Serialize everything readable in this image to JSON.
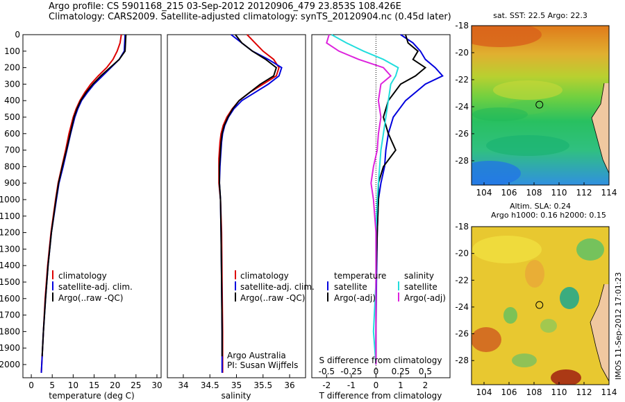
{
  "header": {
    "line1": "Argo profile: CS 5901168_215 03-Sep-2012 20120906_479 23.853S 108.426E",
    "line2": "Climatology: CARS2009. Satellite-adjusted climatology: synTS_20120904.nc (0.45d later)"
  },
  "stamp": "IMOS 11-Sep-2012 17:01:23",
  "colors": {
    "climatology": "#dd0000",
    "satellite": "#0000dd",
    "argo": "#000000",
    "cyan": "#22dddd",
    "magenta": "#dd22dd"
  },
  "chart_data": [
    {
      "id": "temperature",
      "type": "line",
      "xlabel": "temperature (deg C)",
      "xlim": [
        -2,
        31
      ],
      "ylim": [
        2080,
        0
      ],
      "xticks": [
        0,
        5,
        10,
        15,
        20,
        25,
        30
      ],
      "yticks": [
        0,
        100,
        200,
        300,
        400,
        500,
        600,
        700,
        800,
        900,
        1000,
        1100,
        1200,
        1300,
        1400,
        1500,
        1600,
        1700,
        1800,
        1900,
        2000
      ],
      "legend": {
        "placement": "lower-center",
        "labels": [
          "climatology",
          "satellite-adj. clim.",
          "Argo(..raw -QC)"
        ]
      },
      "series": [
        {
          "key": "climatology",
          "depth": [
            0,
            50,
            100,
            150,
            200,
            250,
            300,
            350,
            400,
            450,
            500,
            600,
            700,
            800,
            900,
            1000,
            1200,
            1400,
            1600,
            1800,
            2000,
            2050
          ],
          "values": [
            21.5,
            21.2,
            20.5,
            19.5,
            18,
            16,
            14.2,
            12.8,
            11.6,
            10.7,
            10,
            9,
            8.2,
            7.3,
            6.4,
            5.8,
            4.7,
            3.9,
            3.3,
            2.9,
            2.5,
            2.4
          ]
        },
        {
          "key": "satellite",
          "depth": [
            0,
            50,
            100,
            150,
            200,
            250,
            300,
            350,
            400,
            450,
            500,
            600,
            700,
            800,
            900,
            1000,
            1200,
            1400,
            1600,
            1800,
            2000,
            2050
          ],
          "values": [
            22.4,
            22.3,
            22.2,
            21,
            19,
            17,
            15,
            13.4,
            12,
            11.1,
            10.4,
            9.4,
            8.5,
            7.6,
            6.6,
            6,
            4.8,
            4,
            3.4,
            2.9,
            2.5,
            2.4
          ]
        },
        {
          "key": "argo",
          "depth": [
            0,
            50,
            100,
            150,
            200,
            250,
            300,
            350,
            400,
            450,
            500,
            600,
            700,
            800,
            900,
            1000,
            1200,
            1400,
            1600,
            1800,
            1950
          ],
          "values": [
            22.6,
            22.5,
            22.4,
            21,
            18.8,
            16.6,
            14.7,
            13.1,
            11.8,
            10.9,
            10.2,
            9.3,
            8.4,
            7.4,
            6.5,
            5.9,
            4.8,
            4,
            3.4,
            2.9,
            2.6
          ]
        }
      ]
    },
    {
      "id": "salinity",
      "type": "line",
      "xlabel": "salinity",
      "xlim": [
        33.7,
        36.3
      ],
      "ylim": [
        2080,
        0
      ],
      "xticks": [
        34,
        34.5,
        35,
        35.5,
        36
      ],
      "legend": {
        "placement": "lower-right",
        "labels": [
          "climatology",
          "satellite-adj. clim.",
          "Argo(..raw -QC)"
        ]
      },
      "annotations": [
        "Argo Australia",
        "PI: Susan Wijffels"
      ],
      "series": [
        {
          "key": "climatology",
          "depth": [
            0,
            50,
            100,
            150,
            200,
            250,
            300,
            350,
            400,
            450,
            500,
            550,
            600,
            650,
            700,
            750,
            800,
            900,
            1000,
            1200,
            1500,
            1800,
            2050
          ],
          "values": [
            35.2,
            35.35,
            35.5,
            35.7,
            35.8,
            35.75,
            35.5,
            35.25,
            35.05,
            34.92,
            34.82,
            34.75,
            34.71,
            34.69,
            34.68,
            34.67,
            34.67,
            34.67,
            34.7,
            34.72,
            34.73,
            34.74,
            34.74
          ]
        },
        {
          "key": "satellite",
          "depth": [
            0,
            50,
            100,
            150,
            200,
            250,
            300,
            350,
            400,
            450,
            500,
            550,
            600,
            650,
            700,
            750,
            800,
            900,
            1000,
            1200,
            1500,
            1800,
            2050
          ],
          "values": [
            34.9,
            35.1,
            35.3,
            35.6,
            35.85,
            35.8,
            35.6,
            35.35,
            35.1,
            34.95,
            34.85,
            34.78,
            34.74,
            34.72,
            34.71,
            34.7,
            34.69,
            34.68,
            34.7,
            34.71,
            34.72,
            34.73,
            34.73
          ]
        },
        {
          "key": "argo",
          "depth": [
            0,
            50,
            100,
            150,
            200,
            250,
            300,
            350,
            400,
            450,
            500,
            550,
            600,
            650,
            700,
            750,
            800,
            900,
            1000,
            1200,
            1500,
            1800,
            1950
          ],
          "values": [
            34.98,
            35.1,
            35.3,
            35.55,
            35.75,
            35.7,
            35.45,
            35.25,
            35.05,
            34.93,
            34.84,
            34.77,
            34.73,
            34.71,
            34.7,
            34.69,
            34.68,
            34.68,
            34.7,
            34.71,
            34.72,
            34.73,
            34.73
          ]
        }
      ]
    },
    {
      "id": "difference",
      "type": "line",
      "xlabel": "T difference from climatology",
      "x2label": "S difference from climatology",
      "xlim": [
        -2.6,
        3.0
      ],
      "ylim": [
        2080,
        0
      ],
      "xticks": [
        -2,
        -1,
        0,
        1,
        2
      ],
      "x2ticks": [
        -0.5,
        -0.25,
        0,
        0.25,
        0.5
      ],
      "legend": {
        "placement": "lower-center",
        "title_left": "temperature",
        "title_right": "salinity",
        "labels": [
          "satellite",
          "Argo(-adj)",
          "satellite",
          "Argo(-adj)"
        ]
      },
      "series": [
        {
          "key": "t_satellite",
          "depth": [
            0,
            50,
            100,
            150,
            200,
            250,
            300,
            400,
            500,
            600,
            700,
            800,
            900,
            1000,
            1200,
            1500,
            1800,
            2000
          ],
          "values": [
            1.0,
            1.5,
            1.8,
            2.0,
            2.4,
            2.7,
            2.0,
            1.2,
            0.7,
            0.5,
            0.4,
            0.35,
            0.2,
            0.1,
            0.05,
            0.02,
            0.0,
            0.0
          ]
        },
        {
          "key": "t_argo",
          "depth": [
            0,
            50,
            100,
            150,
            200,
            250,
            300,
            400,
            500,
            600,
            700,
            800,
            900,
            1000,
            1200,
            1500,
            1800,
            2000
          ],
          "values": [
            1.2,
            1.3,
            1.7,
            1.5,
            2.0,
            1.6,
            1.0,
            0.5,
            0.3,
            0.5,
            0.8,
            0.3,
            0.1,
            0.1,
            0.05,
            0.0,
            0.0,
            0.0
          ]
        },
        {
          "key": "s_satellite",
          "depth": [
            0,
            50,
            100,
            150,
            200,
            250,
            300,
            400,
            500,
            600,
            700,
            800,
            900,
            1000,
            1200,
            1500,
            1800,
            2000
          ],
          "values": [
            -1.8,
            -1.2,
            -0.5,
            0.3,
            0.9,
            0.8,
            0.6,
            0.5,
            0.4,
            0.3,
            0.2,
            0.15,
            0.1,
            0.05,
            0.0,
            0.0,
            -0.1,
            0.0
          ]
        },
        {
          "key": "s_argo",
          "depth": [
            0,
            50,
            100,
            150,
            200,
            250,
            300,
            400,
            500,
            600,
            700,
            800,
            900,
            1000,
            1200,
            1500,
            1800,
            2000
          ],
          "values": [
            -1.9,
            -2.0,
            -1.5,
            -0.7,
            0.3,
            0.6,
            0.2,
            0.1,
            0.2,
            0.1,
            0.05,
            -0.1,
            -0.2,
            -0.1,
            0.0,
            0.0,
            0.0,
            0.0
          ]
        }
      ]
    },
    {
      "id": "sst_map",
      "type": "heatmap",
      "title": "sat. SST: 22.5  Argo: 22.3",
      "xlim": [
        103,
        114
      ],
      "ylim": [
        -29.8,
        -18
      ],
      "xticks": [
        104,
        106,
        108,
        110,
        112,
        114
      ],
      "yticks": [
        -18,
        -20,
        -22,
        -24,
        -26,
        -28
      ],
      "marker": {
        "lon": 108.43,
        "lat": -23.85
      }
    },
    {
      "id": "sla_map",
      "type": "heatmap",
      "title": "Altim. SLA: 0.24",
      "subtitle": "Argo h1000: 0.16  h2000: 0.15",
      "xlim": [
        103,
        114
      ],
      "ylim": [
        -29.8,
        -18
      ],
      "xticks": [
        104,
        106,
        108,
        110,
        112,
        114
      ],
      "yticks": [
        -18,
        -20,
        -22,
        -24,
        -26,
        -28
      ],
      "marker": {
        "lon": 108.43,
        "lat": -23.85
      }
    }
  ]
}
